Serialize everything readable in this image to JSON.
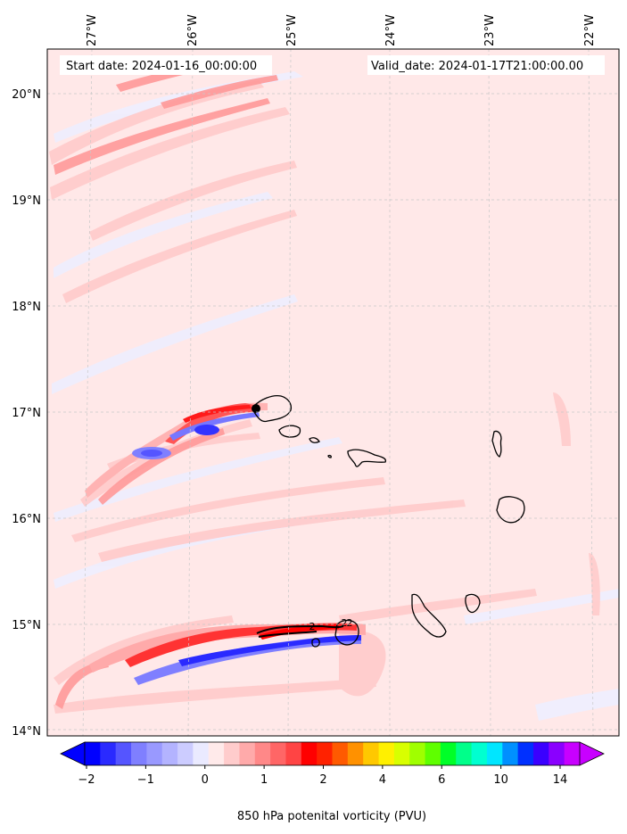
{
  "map": {
    "start_label": "Start date: 2024-01-16_00:00:00",
    "valid_label": "Valid_date: 2024-01-17T21:00:00.00",
    "lon_ticks": [
      "27°W",
      "26°W",
      "25°W",
      "24°W",
      "23°W",
      "22°W"
    ],
    "lat_ticks": [
      "20°N",
      "19°N",
      "18°N",
      "17°N",
      "16°N",
      "15°N",
      "14°N"
    ],
    "contour_labels": [
      "2",
      "2",
      "2"
    ],
    "colorbar": {
      "label": "850 hPa potenital vorticity (PVU)",
      "ticks": [
        "−2",
        "−1",
        "0",
        "1",
        "2",
        "4",
        "6",
        "10",
        "14"
      ],
      "colors": [
        "#0000ff",
        "#2a2aff",
        "#5555ff",
        "#7f7fff",
        "#9999ff",
        "#b3b3ff",
        "#ccccff",
        "#eaeaff",
        "#ffeaea",
        "#ffcccc",
        "#ffaaaa",
        "#ff8888",
        "#ff6666",
        "#ff4444",
        "#ff0000",
        "#ff2200",
        "#ff5a00",
        "#ff9100",
        "#ffc800",
        "#fff000",
        "#d8ff00",
        "#a0ff00",
        "#5fff00",
        "#00ff28",
        "#00ff8a",
        "#00ffd0",
        "#00e6ff",
        "#0090ff",
        "#0030ff",
        "#3a00ff",
        "#8a00ff",
        "#c800ff"
      ]
    },
    "colors": {
      "background_fill": "#ffe8e8",
      "land": "#000000",
      "grid": "#c8c8c8"
    }
  }
}
